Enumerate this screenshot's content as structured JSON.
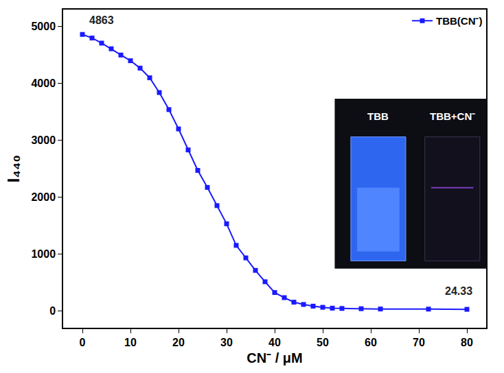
{
  "chart_data": {
    "type": "line",
    "x_label": "CN⁻ / μM",
    "y_label": "I₄₄₀",
    "series": [
      {
        "name": "TBB(CN⁻)",
        "color": "#1a1aff",
        "marker": "square",
        "line_style": "solid",
        "x": [
          0,
          2,
          4,
          6,
          8,
          10,
          12,
          14,
          16,
          18,
          20,
          22,
          24,
          26,
          28,
          30,
          32,
          34,
          36,
          38,
          40,
          42,
          44,
          46,
          48,
          50,
          52,
          54,
          58,
          62,
          72,
          80
        ],
        "values": [
          4863,
          4800,
          4710,
          4610,
          4500,
          4400,
          4270,
          4100,
          3840,
          3540,
          3200,
          2830,
          2470,
          2170,
          1850,
          1530,
          1150,
          930,
          710,
          510,
          320,
          230,
          150,
          110,
          80,
          60,
          45,
          40,
          35,
          30,
          28,
          24.33
        ]
      }
    ],
    "annotations": [
      {
        "text": "4863",
        "x": 0,
        "y": 4863
      },
      {
        "text": "24.33",
        "x": 80,
        "y": 24.33
      }
    ],
    "inset_labels": [
      "TBB",
      "TBB+CN⁻"
    ],
    "xlim": [
      -4,
      84
    ],
    "xticks": [
      0,
      10,
      20,
      30,
      40,
      50,
      60,
      70,
      80
    ],
    "ylim": [
      -300,
      5300
    ],
    "yticks": [
      0,
      1000,
      2000,
      3000,
      4000,
      5000
    ],
    "grid": false,
    "legend": "top right"
  }
}
